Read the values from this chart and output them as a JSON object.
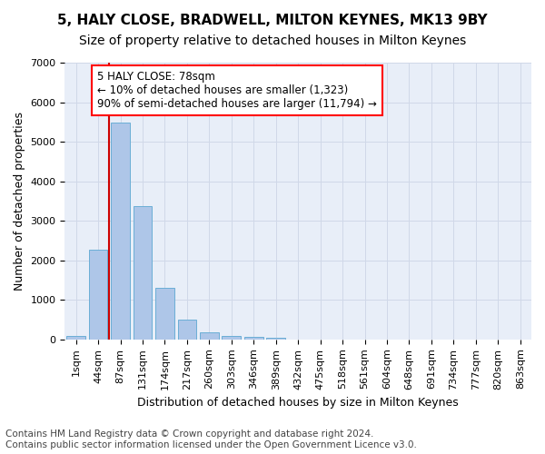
{
  "title": "5, HALY CLOSE, BRADWELL, MILTON KEYNES, MK13 9BY",
  "subtitle": "Size of property relative to detached houses in Milton Keynes",
  "xlabel": "Distribution of detached houses by size in Milton Keynes",
  "ylabel": "Number of detached properties",
  "footer_line1": "Contains HM Land Registry data © Crown copyright and database right 2024.",
  "footer_line2": "Contains public sector information licensed under the Open Government Licence v3.0.",
  "bin_labels": [
    "1sqm",
    "44sqm",
    "87sqm",
    "131sqm",
    "174sqm",
    "217sqm",
    "260sqm",
    "303sqm",
    "346sqm",
    "389sqm",
    "432sqm",
    "475sqm",
    "518sqm",
    "561sqm",
    "604sqm",
    "648sqm",
    "691sqm",
    "734sqm",
    "777sqm",
    "820sqm",
    "863sqm"
  ],
  "bar_values": [
    80,
    2280,
    5480,
    3380,
    1310,
    490,
    175,
    90,
    60,
    50,
    0,
    0,
    0,
    0,
    0,
    0,
    0,
    0,
    0,
    0,
    0
  ],
  "bar_color": "#aec6e8",
  "bar_edgecolor": "#6baed6",
  "grid_color": "#d0d8e8",
  "background_color": "#e8eef8",
  "vline_x_index": 2,
  "vline_color": "#cc0000",
  "annotation_box_text": "5 HALY CLOSE: 78sqm\n← 10% of detached houses are smaller (1,323)\n90% of semi-detached houses are larger (11,794) →",
  "ylim": [
    0,
    7000
  ],
  "yticks": [
    0,
    1000,
    2000,
    3000,
    4000,
    5000,
    6000,
    7000
  ],
  "title_fontsize": 11,
  "subtitle_fontsize": 10,
  "axis_label_fontsize": 9,
  "tick_fontsize": 8,
  "annotation_fontsize": 8.5,
  "footer_fontsize": 7.5
}
